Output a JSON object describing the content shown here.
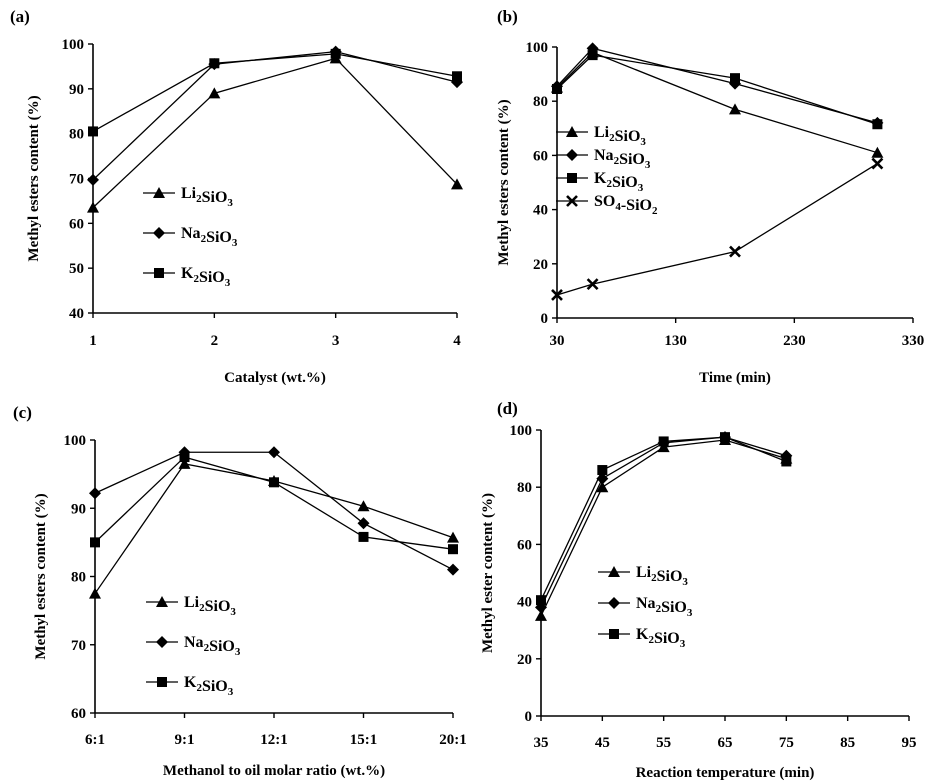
{
  "chart_data": [
    {
      "panel": "(a)",
      "type": "line",
      "xlabel": "Catalyst (wt.%)",
      "ylabel": "Methyl esters content  (%)",
      "x": [
        1,
        2,
        3,
        4
      ],
      "xlim": [
        1,
        4
      ],
      "ylim": [
        40,
        100
      ],
      "xticks": [
        1,
        2,
        3,
        4
      ],
      "yticks": [
        40,
        50,
        60,
        70,
        80,
        90,
        100
      ],
      "legend": "left-middle",
      "series": [
        {
          "name": "Li2SiO3",
          "marker": "triangle",
          "values": [
            63.5,
            89,
            96.8,
            68.7
          ]
        },
        {
          "name": "Na2SiO3",
          "marker": "diamond",
          "values": [
            69.7,
            95.5,
            98.3,
            91.5
          ]
        },
        {
          "name": "K2SiO3",
          "marker": "square",
          "values": [
            80.5,
            95.7,
            97.8,
            92.8
          ]
        }
      ]
    },
    {
      "panel": "(b)",
      "type": "line",
      "xlabel": "Time (min)",
      "ylabel": "Methyl esters content (%)",
      "xlim": [
        30,
        330
      ],
      "ylim": [
        0,
        100
      ],
      "xticks": [
        30,
        130,
        230,
        330
      ],
      "yticks": [
        0,
        20,
        40,
        60,
        80,
        100
      ],
      "legend": "left-middle",
      "series": [
        {
          "name": "Li2SiO3",
          "marker": "triangle",
          "x": [
            30,
            60,
            180,
            300
          ],
          "values": [
            85,
            98,
            77,
            61
          ]
        },
        {
          "name": "Na2SiO3",
          "marker": "diamond",
          "x": [
            30,
            60,
            180,
            300
          ],
          "values": [
            85.5,
            99.5,
            86.5,
            72
          ]
        },
        {
          "name": "K2SiO3",
          "marker": "square",
          "x": [
            30,
            60,
            180,
            300
          ],
          "values": [
            84.5,
            97,
            88.5,
            71.5
          ]
        },
        {
          "name": "SO4-SiO2",
          "marker": "x",
          "x": [
            30,
            60,
            180,
            300
          ],
          "values": [
            8.5,
            12.5,
            24.5,
            57
          ]
        }
      ]
    },
    {
      "panel": "(c)",
      "type": "line",
      "xlabel": "Methanol to oil molar ratio (wt.%)",
      "ylabel": "Methyl esters content (%)",
      "categories": [
        "6:1",
        "9:1",
        "12:1",
        "15:1",
        "20:1"
      ],
      "ylim": [
        60,
        100
      ],
      "yticks": [
        60,
        70,
        80,
        90,
        100
      ],
      "legend": "left-bottom",
      "series": [
        {
          "name": "Li2SiO3",
          "marker": "triangle",
          "values": [
            77.5,
            96.5,
            94,
            90.3,
            85.7
          ]
        },
        {
          "name": "Na2SiO3",
          "marker": "diamond",
          "values": [
            92.2,
            98.2,
            98.2,
            87.8,
            81
          ]
        },
        {
          "name": "K2SiO3",
          "marker": "square",
          "values": [
            85,
            97.5,
            93.8,
            85.8,
            84
          ]
        }
      ]
    },
    {
      "panel": "(d)",
      "type": "line",
      "xlabel": "Reaction temperature (min)",
      "ylabel": "Methyl ester content (%)",
      "x": [
        35,
        45,
        55,
        65,
        75
      ],
      "xlim": [
        35,
        95
      ],
      "ylim": [
        0,
        100
      ],
      "xticks": [
        35,
        45,
        55,
        65,
        75,
        85,
        95
      ],
      "yticks": [
        0,
        20,
        40,
        60,
        80,
        100
      ],
      "legend": "center",
      "series": [
        {
          "name": "Li2SiO3",
          "marker": "triangle",
          "values": [
            35,
            80,
            94,
            96.5,
            90
          ]
        },
        {
          "name": "Na2SiO3",
          "marker": "diamond",
          "values": [
            38,
            83,
            95.5,
            97.5,
            91
          ]
        },
        {
          "name": "K2SiO3",
          "marker": "square",
          "values": [
            40.5,
            86,
            96,
            97.5,
            89
          ]
        }
      ]
    }
  ]
}
